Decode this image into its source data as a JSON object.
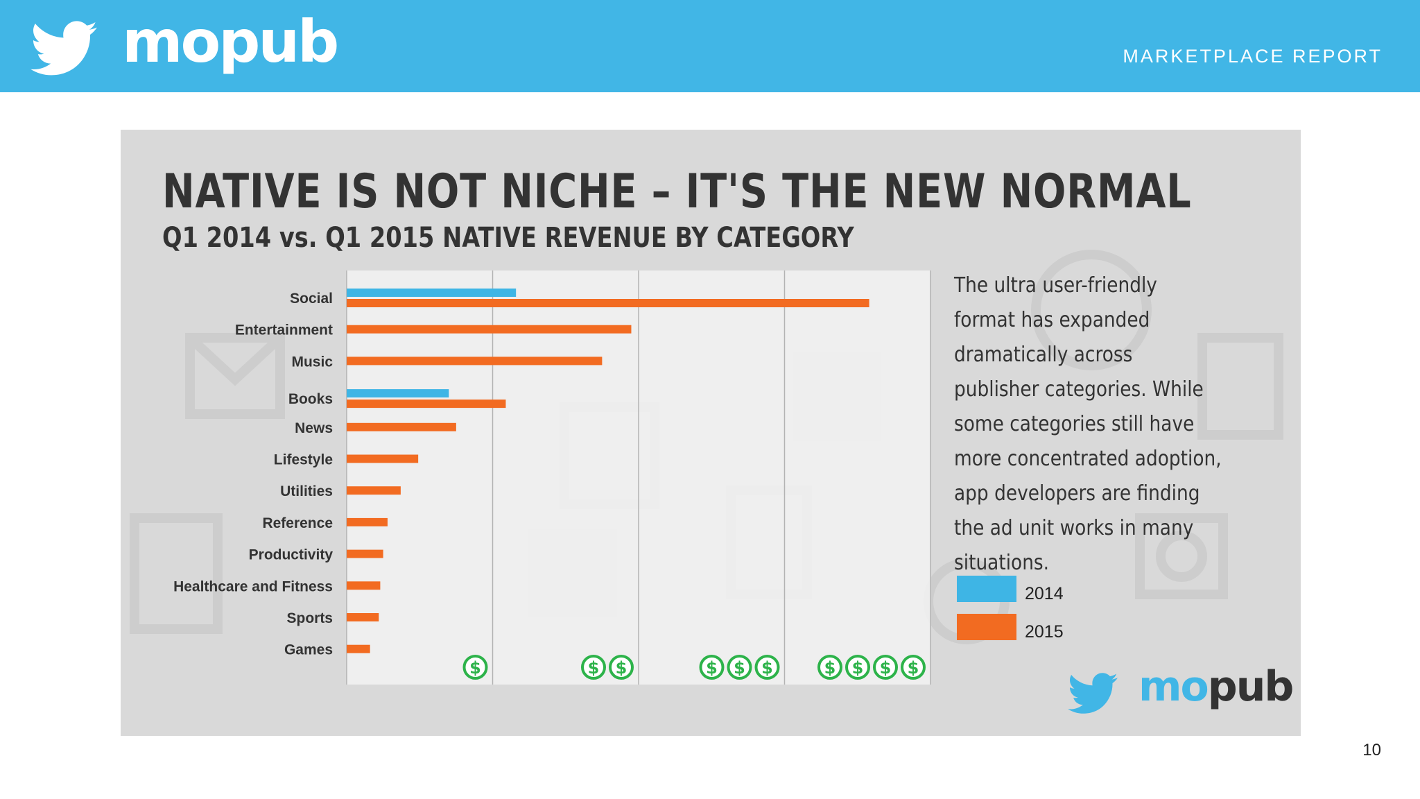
{
  "header": {
    "brand": "mopub",
    "report_label": "MARKETPLACE REPORT",
    "icon": "twitter-bird-icon"
  },
  "slide": {
    "title": "NATIVE IS NOT NICHE – IT'S THE NEW NORMAL",
    "subtitle": "Q1 2014 vs. Q1 2015 NATIVE REVENUE BY CATEGORY",
    "description": "The ultra user-friendly format has expanded dramatically across publisher categories. While some categories still have more concentrated adoption, app developers are finding the ad unit works in many situations.",
    "footer_brand": "mopub",
    "page_number": "10"
  },
  "colors": {
    "header_bg": "#41b6e6",
    "series_2014": "#3eb5e5",
    "series_2015": "#f26b21",
    "dollar_green": "#2db34a",
    "text_dark": "#333333"
  },
  "chart_data": {
    "type": "bar",
    "orientation": "horizontal",
    "categories": [
      "Social",
      "Entertainment",
      "Music",
      "Books",
      "News",
      "Lifestyle",
      "Utilities",
      "Reference",
      "Productivity",
      "Healthcare and Fitness",
      "Sports",
      "Games"
    ],
    "series": [
      {
        "name": "2014",
        "values": [
          1.16,
          0,
          0,
          0.7,
          0,
          0,
          0,
          0,
          0,
          0,
          0,
          0
        ]
      },
      {
        "name": "2015",
        "values": [
          3.58,
          1.95,
          1.75,
          1.09,
          0.75,
          0.49,
          0.37,
          0.28,
          0.25,
          0.23,
          0.22,
          0.16
        ]
      }
    ],
    "x_axis_tick_labels": [
      "$",
      "$$",
      "$$$",
      "$$$$"
    ],
    "xlim": [
      0,
      4
    ],
    "grid": true,
    "legend": {
      "entries": [
        "2014",
        "2015"
      ],
      "placement": "right"
    }
  }
}
